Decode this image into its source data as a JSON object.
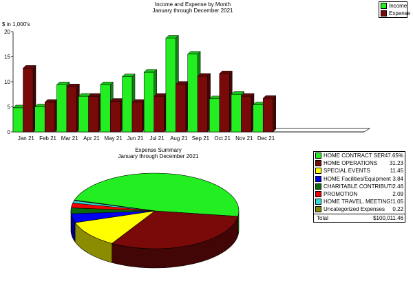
{
  "chart_data": [
    {
      "type": "bar",
      "title": "Income and Expense by Month",
      "subtitle": "January through December 2021",
      "ylabel": "$ in 1,000's",
      "xlabel": "",
      "ylim": [
        0,
        20
      ],
      "yticks": [
        "0",
        "5",
        "10",
        "15",
        "20"
      ],
      "grid": false,
      "legend_position": "top-right",
      "categories": [
        "Jan 21",
        "Feb 21",
        "Mar 21",
        "Apr 21",
        "May 21",
        "Jun 21",
        "Jul 21",
        "Aug 21",
        "Sep 21",
        "Oct 21",
        "Nov 21",
        "Dec 21"
      ],
      "series": [
        {
          "name": "Income",
          "color": "#22ee22",
          "values": [
            4.8,
            5.0,
            9.4,
            7.1,
            9.4,
            11.0,
            11.9,
            18.7,
            15.5,
            6.6,
            7.5,
            5.4
          ]
        },
        {
          "name": "Expense",
          "color": "#7a0a0a",
          "values": [
            12.7,
            5.9,
            9.0,
            7.1,
            6.1,
            5.9,
            7.1,
            9.5,
            11.1,
            11.6,
            7.1,
            6.7
          ]
        }
      ]
    },
    {
      "type": "pie",
      "title": "Expense Summary",
      "subtitle": "January through December 2021",
      "legend_position": "right",
      "slices": [
        {
          "label": "HOME CONTRACT SERVICES",
          "value": 47.65,
          "display": "47.65%",
          "color": "#22ee22"
        },
        {
          "label": "HOME OPERATIONS",
          "value": 31.23,
          "display": "31.23",
          "color": "#7a0a0a"
        },
        {
          "label": "SPECIAL EVENTS",
          "value": 11.45,
          "display": "11.45",
          "color": "#ffff00"
        },
        {
          "label": "HOME Facilities/Equipment",
          "value": 3.84,
          "display": "3.84",
          "color": "#0000ee"
        },
        {
          "label": "CHARITABLE CONTRIBUTIONS",
          "value": 2.46,
          "display": "2.46",
          "color": "#0a6a0a"
        },
        {
          "label": "PROMOTION",
          "value": 2.09,
          "display": "2.09",
          "color": "#ee0000"
        },
        {
          "label": "HOME TRAVEL, MEETINGS",
          "value": 1.05,
          "display": "1.05",
          "color": "#33dddd"
        },
        {
          "label": "Uncategorized Expenses",
          "value": 0.22,
          "display": "0.22",
          "color": "#888800"
        }
      ],
      "total_label": "Total",
      "total_value": "$100,011.46"
    }
  ]
}
